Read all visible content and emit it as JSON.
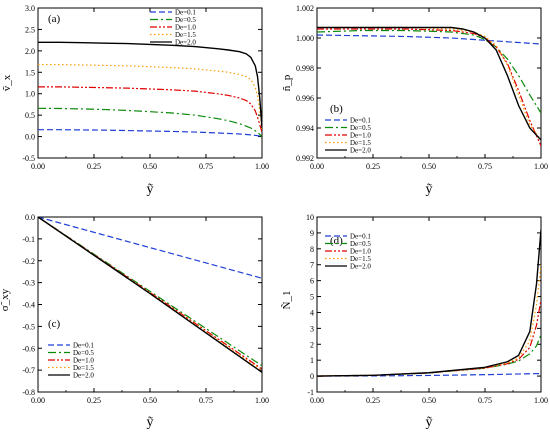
{
  "legend_entries": [
    "De=0.1",
    "De=0.5",
    "De=1.0",
    "De=1.5",
    "De=2.0"
  ],
  "series_styles": [
    {
      "name": "De=0.1",
      "color": "#1f3fd6",
      "dash": "6,3"
    },
    {
      "name": "De=0.5",
      "color": "#0a8a0a",
      "dash": "8,3,2,3"
    },
    {
      "name": "De=1.0",
      "color": "#e00000",
      "dash": "7,2,2,2,2,2"
    },
    {
      "name": "De=1.5",
      "color": "#ff9a00",
      "dash": "1.5,2.5"
    },
    {
      "name": "De=2.0",
      "color": "#000000",
      "dash": ""
    }
  ],
  "chart_data": [
    {
      "type": "line",
      "panel_label": "(a)",
      "ylabel": "ṽ_x",
      "xlabel": "ỹ",
      "xlim": [
        0.0,
        1.0
      ],
      "ylim": [
        -0.5,
        3.0
      ],
      "xticks": [
        "0.00",
        "0.25",
        "0.50",
        "0.75",
        "1.00"
      ],
      "yticks": [
        "-0.5",
        "0.0",
        "0.5",
        "1.0",
        "1.5",
        "2.0",
        "2.5",
        "3.0"
      ],
      "legend": "top-right",
      "series": [
        {
          "name": "De=0.1",
          "x": [
            0,
            0.1,
            0.2,
            0.3,
            0.4,
            0.5,
            0.6,
            0.7,
            0.8,
            0.9,
            0.95,
            0.98,
            1.0
          ],
          "y": [
            0.16,
            0.16,
            0.155,
            0.15,
            0.14,
            0.13,
            0.12,
            0.105,
            0.085,
            0.06,
            0.04,
            0.02,
            0.0
          ]
        },
        {
          "name": "De=0.5",
          "x": [
            0,
            0.1,
            0.2,
            0.3,
            0.4,
            0.5,
            0.6,
            0.7,
            0.8,
            0.85,
            0.9,
            0.95,
            0.98,
            1.0
          ],
          "y": [
            0.66,
            0.655,
            0.645,
            0.63,
            0.61,
            0.58,
            0.55,
            0.5,
            0.42,
            0.37,
            0.3,
            0.2,
            0.1,
            0.0
          ]
        },
        {
          "name": "De=1.0",
          "x": [
            0,
            0.1,
            0.2,
            0.3,
            0.4,
            0.5,
            0.6,
            0.7,
            0.8,
            0.85,
            0.9,
            0.93,
            0.95,
            0.97,
            0.98,
            0.99,
            1.0
          ],
          "y": [
            1.16,
            1.16,
            1.15,
            1.14,
            1.13,
            1.11,
            1.09,
            1.06,
            1.0,
            0.96,
            0.9,
            0.84,
            0.76,
            0.6,
            0.45,
            0.28,
            0.1
          ]
        },
        {
          "name": "De=1.5",
          "x": [
            0,
            0.1,
            0.2,
            0.3,
            0.4,
            0.5,
            0.6,
            0.7,
            0.8,
            0.85,
            0.9,
            0.93,
            0.95,
            0.97,
            0.98,
            0.99,
            1.0
          ],
          "y": [
            1.68,
            1.68,
            1.67,
            1.66,
            1.65,
            1.63,
            1.61,
            1.58,
            1.53,
            1.5,
            1.45,
            1.4,
            1.33,
            1.15,
            0.95,
            0.6,
            0.15
          ]
        },
        {
          "name": "De=2.0",
          "x": [
            0,
            0.1,
            0.2,
            0.3,
            0.4,
            0.5,
            0.6,
            0.7,
            0.8,
            0.85,
            0.9,
            0.93,
            0.95,
            0.97,
            0.98,
            0.99,
            1.0
          ],
          "y": [
            2.2,
            2.2,
            2.19,
            2.18,
            2.17,
            2.15,
            2.13,
            2.1,
            2.05,
            2.02,
            1.98,
            1.93,
            1.85,
            1.65,
            1.4,
            0.9,
            0.2
          ]
        }
      ]
    },
    {
      "type": "line",
      "panel_label": "(b)",
      "ylabel": "ñ_p",
      "xlabel": "ỹ",
      "xlim": [
        0.0,
        1.0
      ],
      "ylim": [
        0.992,
        1.002
      ],
      "xticks": [
        "0.00",
        "0.25",
        "0.50",
        "0.75",
        "1.00"
      ],
      "yticks": [
        "0.992",
        "0.994",
        "0.996",
        "0.998",
        "1.000",
        "1.002"
      ],
      "legend": "bottom-left",
      "series": [
        {
          "name": "De=0.1",
          "x": [
            0,
            0.2,
            0.4,
            0.6,
            0.8,
            0.9,
            1.0
          ],
          "y": [
            1.0002,
            1.00015,
            1.0001,
            1.0,
            0.9998,
            0.9997,
            0.9996
          ]
        },
        {
          "name": "De=0.5",
          "x": [
            0,
            0.2,
            0.4,
            0.6,
            0.7,
            0.75,
            0.8,
            0.85,
            0.9,
            0.95,
            1.0
          ],
          "y": [
            1.0004,
            1.0005,
            1.0005,
            1.0004,
            1.0002,
            0.9999,
            0.9994,
            0.9986,
            0.9975,
            0.9962,
            0.995
          ]
        },
        {
          "name": "De=1.0",
          "x": [
            0,
            0.2,
            0.4,
            0.6,
            0.7,
            0.75,
            0.8,
            0.85,
            0.9,
            0.95,
            1.0
          ],
          "y": [
            1.0006,
            1.0006,
            1.0006,
            1.0005,
            1.0003,
            1.0,
            0.9994,
            0.9983,
            0.9965,
            0.9945,
            0.9928
          ]
        },
        {
          "name": "De=1.5",
          "x": [
            0,
            0.2,
            0.4,
            0.6,
            0.7,
            0.75,
            0.8,
            0.85,
            0.9,
            0.95,
            1.0
          ],
          "y": [
            1.0007,
            1.0007,
            1.0007,
            1.0006,
            1.0004,
            1.0001,
            0.9995,
            0.9982,
            0.9962,
            0.9942,
            0.9932
          ]
        },
        {
          "name": "De=2.0",
          "x": [
            0,
            0.2,
            0.4,
            0.6,
            0.65,
            0.7,
            0.75,
            0.8,
            0.85,
            0.9,
            0.95,
            1.0
          ],
          "y": [
            1.0007,
            1.0007,
            1.0007,
            1.0007,
            1.0006,
            1.0004,
            1.0,
            0.9992,
            0.9975,
            0.9955,
            0.994,
            0.9932
          ]
        }
      ]
    },
    {
      "type": "line",
      "panel_label": "(c)",
      "ylabel": "σ̃_xy",
      "xlabel": "ỹ",
      "xlim": [
        0.0,
        1.0
      ],
      "ylim": [
        -0.8,
        0.0
      ],
      "xticks": [
        "0.00",
        "0.25",
        "0.50",
        "0.75",
        "1.00"
      ],
      "yticks": [
        "0.0",
        "-0.1",
        "-0.2",
        "-0.3",
        "-0.4",
        "-0.5",
        "-0.6",
        "-0.7",
        "-0.8"
      ],
      "legend": "bottom-left",
      "series": [
        {
          "name": "De=0.1",
          "x": [
            0,
            1.0
          ],
          "y": [
            0.0,
            -0.28
          ]
        },
        {
          "name": "De=0.5",
          "x": [
            0,
            0.5,
            1.0
          ],
          "y": [
            0.0,
            -0.34,
            -0.68
          ]
        },
        {
          "name": "De=1.0",
          "x": [
            0,
            0.5,
            1.0
          ],
          "y": [
            0.0,
            -0.345,
            -0.695
          ]
        },
        {
          "name": "De=1.5",
          "x": [
            0,
            0.5,
            1.0
          ],
          "y": [
            0.0,
            -0.348,
            -0.703
          ]
        },
        {
          "name": "De=2.0",
          "x": [
            0,
            0.5,
            1.0
          ],
          "y": [
            0.0,
            -0.35,
            -0.71
          ]
        }
      ]
    },
    {
      "type": "line",
      "panel_label": "(d)",
      "ylabel": "Ñ_1",
      "xlabel": "ỹ",
      "xlim": [
        0.0,
        1.0
      ],
      "ylim": [
        -1,
        10
      ],
      "xticks": [
        "0.00",
        "0.25",
        "0.50",
        "0.75",
        "1.00"
      ],
      "yticks": [
        "-1",
        "0",
        "1",
        "2",
        "3",
        "4",
        "5",
        "6",
        "7",
        "8",
        "9",
        "10"
      ],
      "legend": "top-left",
      "series": [
        {
          "name": "De=0.1",
          "x": [
            0,
            0.25,
            0.5,
            0.75,
            1.0
          ],
          "y": [
            0.0,
            0.01,
            0.04,
            0.09,
            0.16
          ]
        },
        {
          "name": "De=0.5",
          "x": [
            0,
            0.25,
            0.5,
            0.75,
            0.85,
            0.9,
            0.95,
            0.98,
            1.0
          ],
          "y": [
            0.0,
            0.05,
            0.2,
            0.5,
            0.75,
            0.95,
            1.4,
            1.9,
            2.6
          ]
        },
        {
          "name": "De=1.0",
          "x": [
            0,
            0.25,
            0.5,
            0.75,
            0.85,
            0.9,
            0.95,
            0.98,
            1.0
          ],
          "y": [
            0.0,
            0.05,
            0.2,
            0.5,
            0.78,
            1.05,
            1.8,
            3.2,
            4.8
          ]
        },
        {
          "name": "De=1.5",
          "x": [
            0,
            0.25,
            0.5,
            0.75,
            0.85,
            0.9,
            0.95,
            0.98,
            1.0
          ],
          "y": [
            0.0,
            0.05,
            0.2,
            0.52,
            0.82,
            1.15,
            2.2,
            4.5,
            7.0
          ]
        },
        {
          "name": "De=2.0",
          "x": [
            0,
            0.25,
            0.5,
            0.75,
            0.85,
            0.9,
            0.95,
            0.98,
            1.0
          ],
          "y": [
            0.0,
            0.05,
            0.21,
            0.55,
            0.9,
            1.3,
            2.8,
            5.8,
            9.2
          ]
        }
      ]
    }
  ]
}
